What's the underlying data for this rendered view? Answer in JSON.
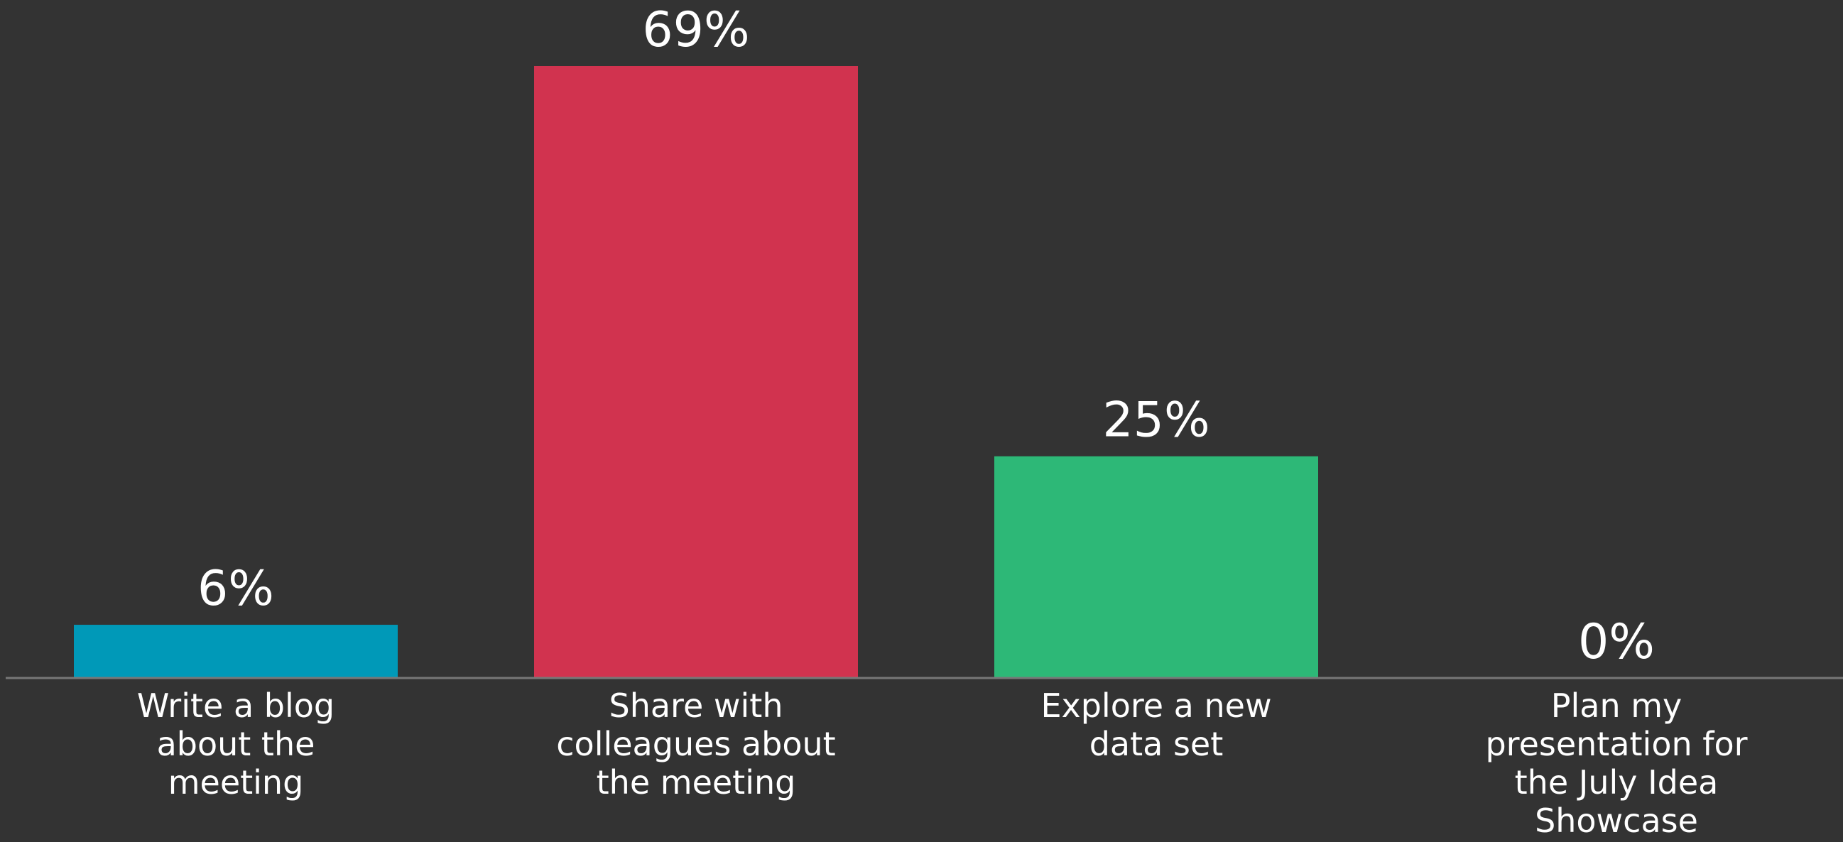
{
  "chart_data": {
    "type": "bar",
    "categories": [
      [
        "Write a blog",
        "about the",
        "meeting"
      ],
      [
        "Share with",
        "colleagues about",
        "the meeting"
      ],
      [
        "Explore a new",
        "data set"
      ],
      [
        "Plan my",
        "presentation for",
        "the July Idea",
        "Showcase"
      ]
    ],
    "values": [
      6,
      69,
      25,
      0
    ],
    "value_labels": [
      "6%",
      "69%",
      "25%",
      "0%"
    ],
    "colors": [
      "#0099b8",
      "#d1334f",
      "#2db877",
      "#333333"
    ],
    "background": "#333333",
    "axis_color": "#777777",
    "ylim": [
      0,
      69
    ],
    "grid": false,
    "legend": "none"
  }
}
